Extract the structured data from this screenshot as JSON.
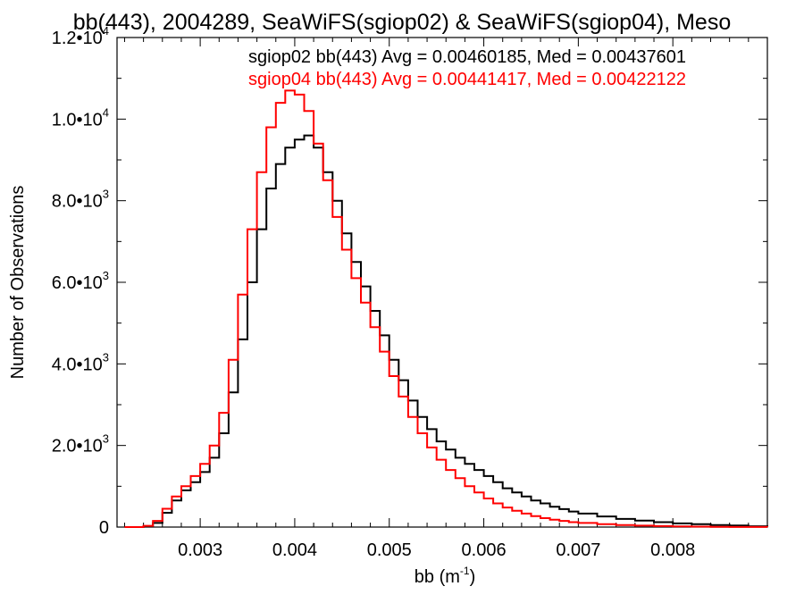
{
  "chart_data": {
    "type": "line",
    "title": "bb(443), 2004289, SeaWiFS(sgiop02) & SeaWiFS(sgiop04), Meso",
    "xlabel": "bb (m",
    "xlabel_exp": "-1",
    "xlabel_close": ")",
    "ylabel": "Number of Observations",
    "xlim": [
      0.00212,
      0.009
    ],
    "ylim": [
      0,
      12000
    ],
    "x_ticks": [
      {
        "value": 0.003,
        "label": "0.003"
      },
      {
        "value": 0.004,
        "label": "0.004"
      },
      {
        "value": 0.005,
        "label": "0.005"
      },
      {
        "value": 0.006,
        "label": "0.006"
      },
      {
        "value": 0.007,
        "label": "0.007"
      },
      {
        "value": 0.008,
        "label": "0.008"
      }
    ],
    "y_ticks": [
      {
        "value": 0,
        "mant": "0",
        "exp": ""
      },
      {
        "value": 2000,
        "mant": "2.0•10",
        "exp": "3"
      },
      {
        "value": 4000,
        "mant": "4.0•10",
        "exp": "3"
      },
      {
        "value": 6000,
        "mant": "6.0•10",
        "exp": "3"
      },
      {
        "value": 8000,
        "mant": "8.0•10",
        "exp": "3"
      },
      {
        "value": 10000,
        "mant": "1.0•10",
        "exp": "4"
      },
      {
        "value": 12000,
        "mant": "1.2•10",
        "exp": "4"
      }
    ],
    "x_minor_step": 0.0002,
    "y_minor_step": 1000,
    "grid": false,
    "legend_position": "top-right",
    "series": [
      {
        "name": "sgiop02 bb(443) Avg = 0.00460185, Med = 0.00437601",
        "color": "#000000",
        "x": [
          0.0022,
          0.0023,
          0.0024,
          0.0025,
          0.0026,
          0.0027,
          0.0028,
          0.0029,
          0.003,
          0.0031,
          0.0032,
          0.0033,
          0.0034,
          0.0035,
          0.0036,
          0.0037,
          0.0038,
          0.0039,
          0.004,
          0.0041,
          0.0042,
          0.0043,
          0.0044,
          0.0045,
          0.0046,
          0.0047,
          0.0048,
          0.0049,
          0.005,
          0.0051,
          0.0052,
          0.0053,
          0.0054,
          0.0055,
          0.0056,
          0.0057,
          0.0058,
          0.0059,
          0.006,
          0.0061,
          0.0062,
          0.0063,
          0.0064,
          0.0065,
          0.0066,
          0.0067,
          0.0068,
          0.0069,
          0.007,
          0.0072,
          0.0074,
          0.0076,
          0.0078,
          0.008,
          0.0082,
          0.0084,
          0.0086,
          0.0088,
          0.009
        ],
        "y": [
          0,
          0,
          20,
          100,
          350,
          650,
          900,
          1100,
          1350,
          1700,
          2300,
          3300,
          4600,
          6000,
          7300,
          8300,
          8900,
          9300,
          9500,
          9600,
          9300,
          8700,
          8000,
          7200,
          6500,
          5900,
          5300,
          4700,
          4100,
          3600,
          3100,
          2700,
          2400,
          2100,
          1900,
          1700,
          1550,
          1400,
          1250,
          1100,
          950,
          850,
          750,
          650,
          580,
          500,
          440,
          380,
          330,
          260,
          200,
          160,
          120,
          90,
          70,
          50,
          40,
          20,
          10
        ]
      },
      {
        "name": "sgiop04 bb(443) Avg = 0.00441417, Med = 0.00422122",
        "color": "#ff0000",
        "x": [
          0.0022,
          0.0023,
          0.0024,
          0.0025,
          0.0026,
          0.0027,
          0.0028,
          0.0029,
          0.003,
          0.0031,
          0.0032,
          0.0033,
          0.0034,
          0.0035,
          0.0036,
          0.0037,
          0.0038,
          0.0039,
          0.004,
          0.0041,
          0.0042,
          0.0043,
          0.0044,
          0.0045,
          0.0046,
          0.0047,
          0.0048,
          0.0049,
          0.005,
          0.0051,
          0.0052,
          0.0053,
          0.0054,
          0.0055,
          0.0056,
          0.0057,
          0.0058,
          0.0059,
          0.006,
          0.0061,
          0.0062,
          0.0063,
          0.0064,
          0.0065,
          0.0066,
          0.0067,
          0.0068,
          0.0069,
          0.007,
          0.0072,
          0.0074,
          0.0076,
          0.0078,
          0.008,
          0.0082,
          0.0084,
          0.0086,
          0.0088,
          0.009
        ],
        "y": [
          0,
          0,
          30,
          150,
          450,
          750,
          1000,
          1250,
          1550,
          2000,
          2800,
          4100,
          5700,
          7300,
          8700,
          9800,
          10400,
          10700,
          10600,
          10200,
          9400,
          8500,
          7600,
          6800,
          6100,
          5500,
          4900,
          4300,
          3700,
          3200,
          2700,
          2300,
          1950,
          1650,
          1400,
          1200,
          1000,
          850,
          700,
          580,
          480,
          400,
          330,
          270,
          220,
          180,
          150,
          120,
          100,
          70,
          50,
          35,
          25,
          15,
          10,
          5,
          3,
          2,
          0
        ]
      }
    ]
  }
}
